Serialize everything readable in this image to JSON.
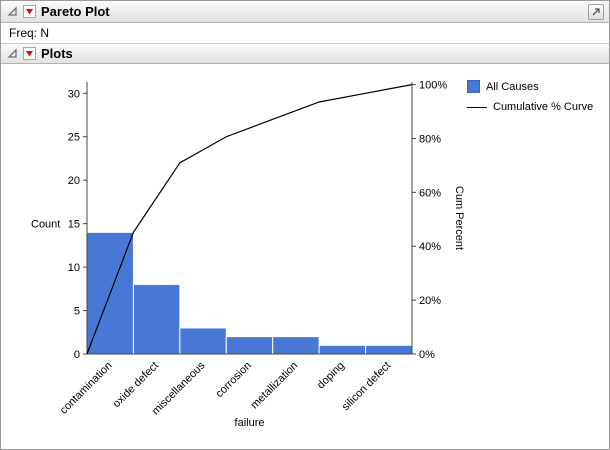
{
  "window": {
    "title": "Pareto Plot",
    "freq_label": "Freq: N",
    "plots_title": "Plots"
  },
  "legend": [
    {
      "label": "All Causes",
      "marker": "blue-square"
    },
    {
      "label": "Cumulative % Curve",
      "marker": "black-line"
    }
  ],
  "colors": {
    "bar": "#4878d6",
    "bar_edge": "#ffffff",
    "line": "#000000",
    "red_triangle": "#cc1111",
    "axis": "#444444"
  },
  "chart_data": {
    "type": "bar",
    "subtype": "pareto",
    "title": "",
    "categories": [
      "contamination",
      "oxide defect",
      "miscellaneous",
      "corrosion",
      "metallization",
      "doping",
      "silicon defect"
    ],
    "series": [
      {
        "name": "All Causes",
        "type": "bar",
        "values": [
          14,
          8,
          3,
          2,
          2,
          1,
          1
        ]
      },
      {
        "name": "Cumulative % Curve",
        "type": "line",
        "cumulative_counts": [
          14,
          22,
          25,
          27,
          29,
          30,
          31
        ],
        "cumulative_percent": [
          45.2,
          71.0,
          80.6,
          87.1,
          93.5,
          96.8,
          100.0
        ]
      }
    ],
    "total_count": 31,
    "xlabel": "failure",
    "ylabel_left": "Count",
    "ylabel_right": "Cum Percent",
    "yticks_left": [
      0,
      5,
      10,
      15,
      20,
      25,
      30
    ],
    "yticks_right_percent": [
      0,
      20,
      40,
      60,
      80,
      100
    ],
    "ylim_left": [
      0,
      31.3
    ],
    "grid": false,
    "legend_position": "right-top",
    "bar_color": "#4878d6",
    "bar_edge_color": "#ffffff",
    "line_color": "#000000"
  }
}
